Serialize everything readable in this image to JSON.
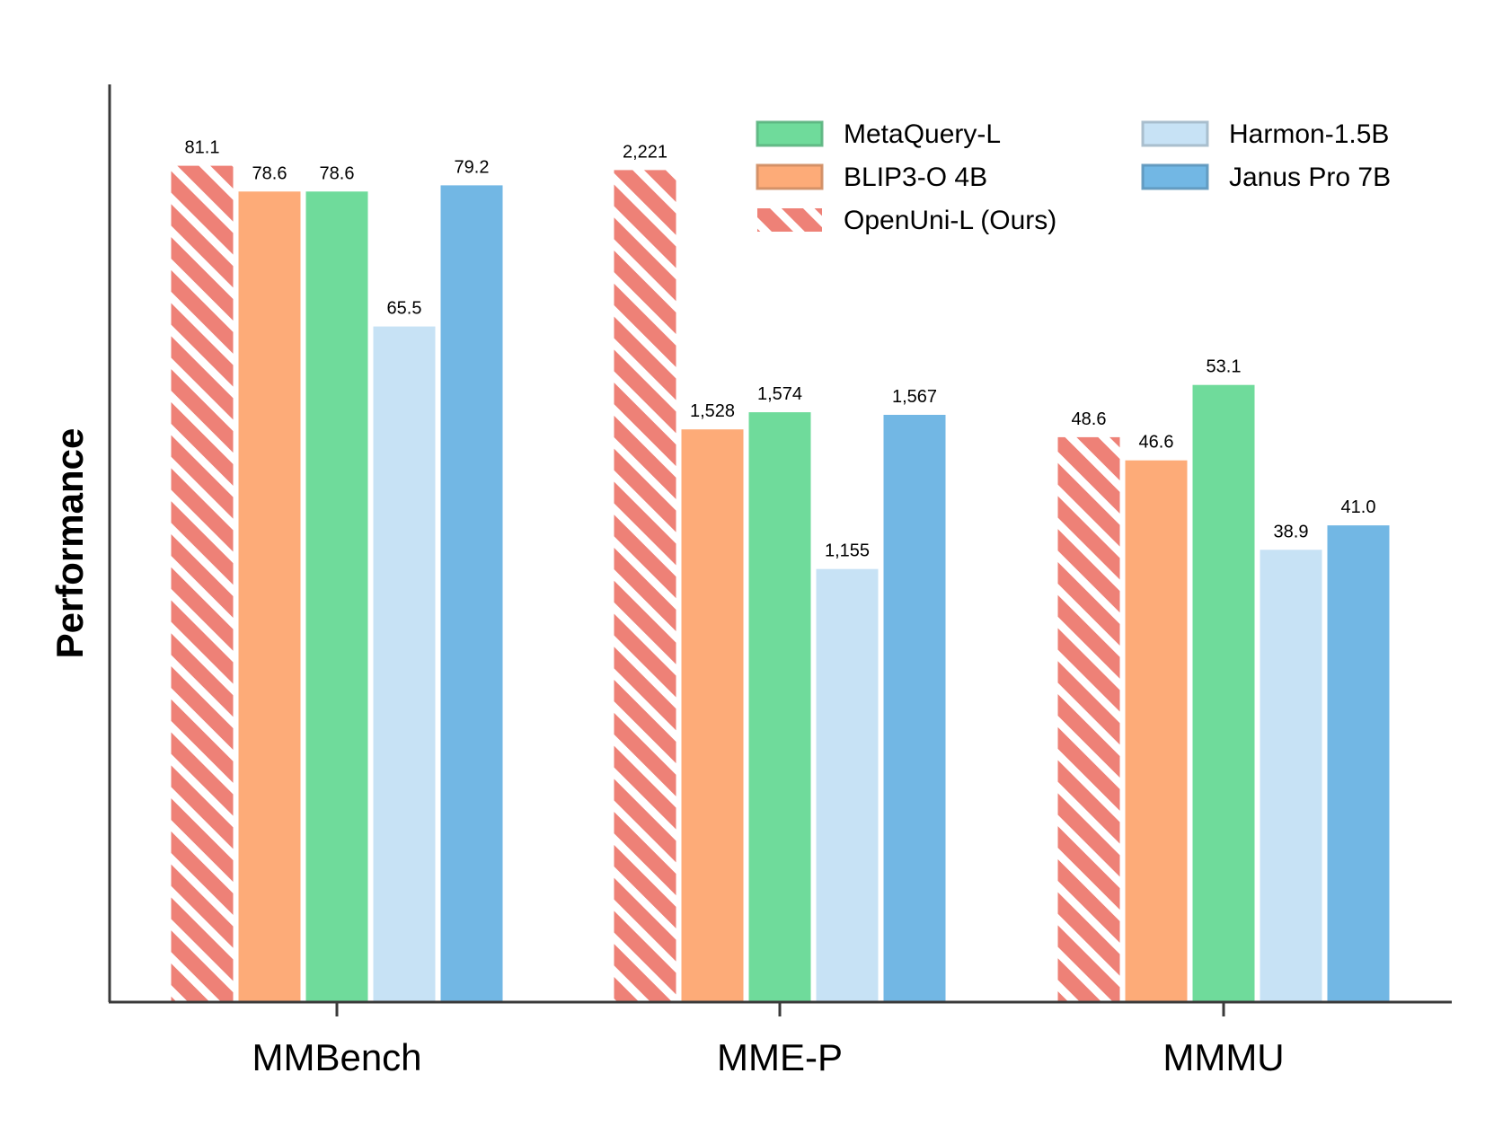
{
  "chart_data": {
    "type": "bar",
    "title": "",
    "xlabel": "",
    "ylabel": "Performance",
    "categories": [
      "MMBench",
      "MME-P",
      "MMMU"
    ],
    "series": [
      {
        "name": "OpenUni-L (Ours)",
        "color": "#ee8177",
        "hatched": true,
        "values": [
          81.1,
          2221,
          48.6
        ],
        "labels": [
          "81.1",
          "2,221",
          "48.6"
        ]
      },
      {
        "name": "BLIP3-O 4B",
        "color": "#fdab78",
        "hatched": false,
        "values": [
          78.6,
          1528,
          46.6
        ],
        "labels": [
          "78.6",
          "1,528",
          "46.6"
        ]
      },
      {
        "name": "MetaQuery-L",
        "color": "#6fdb9b",
        "hatched": false,
        "values": [
          78.6,
          1574,
          53.1
        ],
        "labels": [
          "78.6",
          "1,574",
          "53.1"
        ]
      },
      {
        "name": "Harmon-1.5B",
        "color": "#c7e2f5",
        "hatched": false,
        "values": [
          65.5,
          1155,
          38.9
        ],
        "labels": [
          "65.5",
          "1,155",
          "38.9"
        ]
      },
      {
        "name": "Janus Pro 7B",
        "color": "#72b7e4",
        "hatched": false,
        "values": [
          79.2,
          1567,
          41.0
        ],
        "labels": [
          "79.2",
          "1,567",
          "41.0"
        ]
      }
    ],
    "category_max": [
      89,
      2450,
      79
    ],
    "legend_order": [
      "MetaQuery-L",
      "BLIP3-O 4B",
      "OpenUni-L (Ours)",
      "Harmon-1.5B",
      "Janus Pro 7B"
    ],
    "legend_position": "top-right",
    "grid": false
  }
}
